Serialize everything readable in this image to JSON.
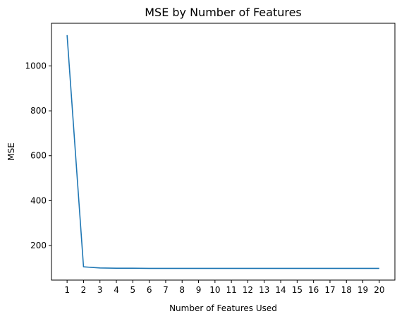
{
  "chart_data": {
    "type": "line",
    "title": "MSE by Number of Features",
    "xlabel": "Number of Features Used",
    "ylabel": "MSE",
    "x": [
      1,
      2,
      3,
      4,
      5,
      6,
      7,
      8,
      9,
      10,
      11,
      12,
      13,
      14,
      15,
      16,
      17,
      18,
      19,
      20
    ],
    "x_tick_labels": [
      "1",
      "2",
      "3",
      "4",
      "5",
      "6",
      "7",
      "8",
      "9",
      "10",
      "11",
      "12",
      "13",
      "14",
      "15",
      "16",
      "17",
      "18",
      "19",
      "20"
    ],
    "series": [
      {
        "values": [
          1137,
          105,
          100,
          99,
          99,
          98,
          98,
          98,
          98,
          98,
          98,
          98,
          98,
          98,
          98,
          98,
          98,
          98,
          98,
          98
        ],
        "color": "#1f77b4"
      }
    ],
    "y_ticks": [
      200,
      400,
      600,
      800,
      1000
    ],
    "y_tick_labels": [
      "200",
      "400",
      "600",
      "800",
      "1000"
    ],
    "xlim": [
      0.05,
      20.95
    ],
    "ylim": [
      46,
      1190
    ],
    "grid": false
  }
}
